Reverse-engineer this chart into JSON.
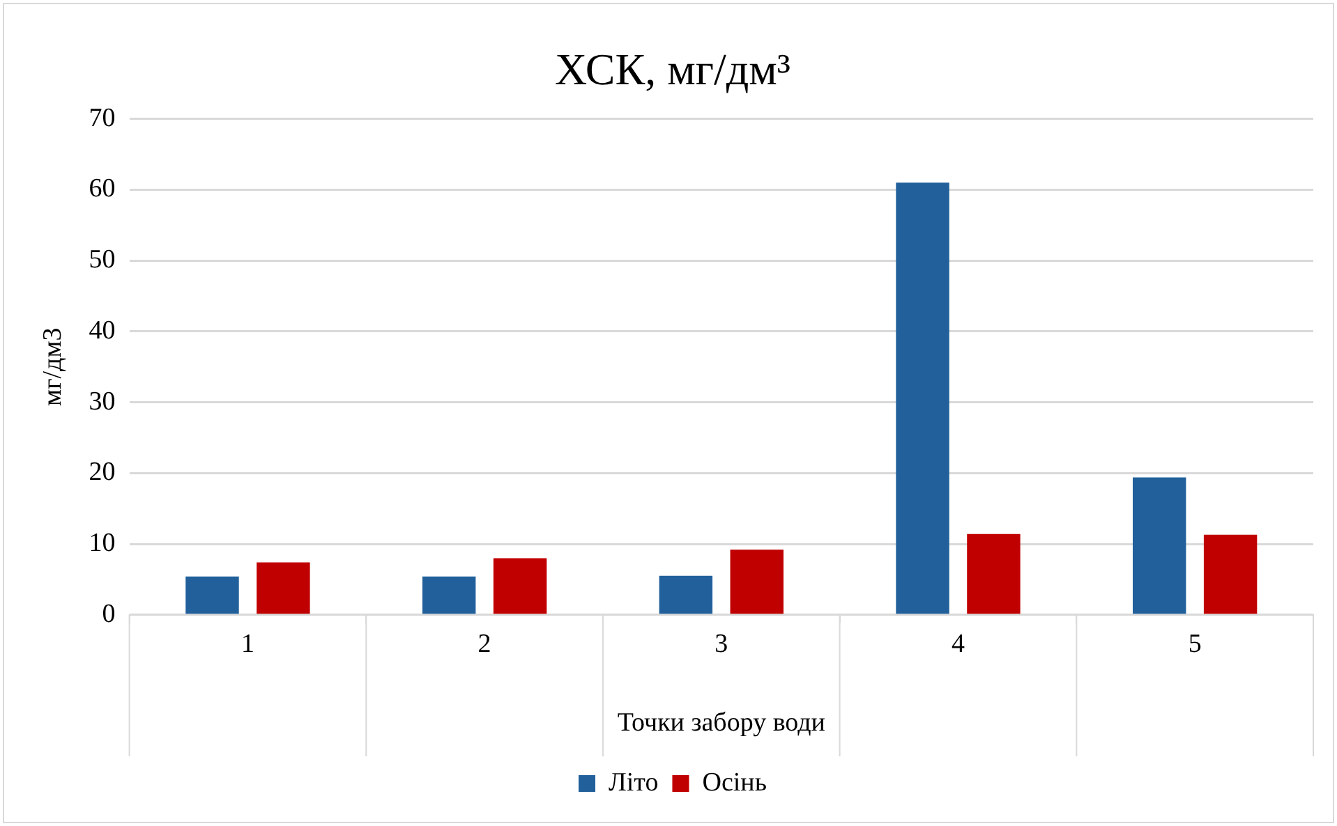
{
  "chart_data": {
    "type": "bar",
    "title": "ХСК, мг/дм³",
    "xlabel": "Точки забору води",
    "ylabel": "мг/дм3",
    "categories": [
      "1",
      "2",
      "3",
      "4",
      "5"
    ],
    "series": [
      {
        "name": "Літо",
        "color": "#21609b",
        "values": [
          5.4,
          5.4,
          5.5,
          61.0,
          19.4
        ]
      },
      {
        "name": "Осінь",
        "color": "#c00000",
        "values": [
          7.4,
          8.0,
          9.2,
          11.4,
          11.3
        ]
      }
    ],
    "ylim": [
      0,
      70
    ],
    "yticks": [
      0,
      10,
      20,
      30,
      40,
      50,
      60,
      70
    ],
    "grid": "y",
    "legend": "bottom"
  }
}
